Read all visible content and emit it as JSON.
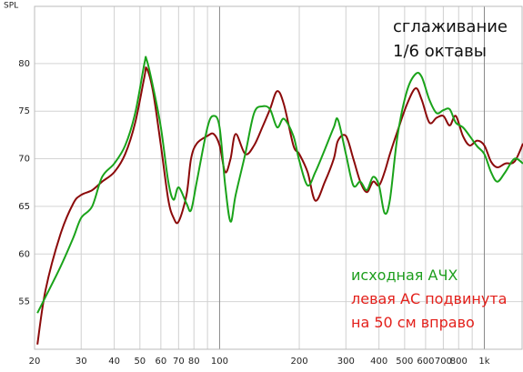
{
  "chart_data": {
    "type": "line",
    "y_label": "SPL",
    "annotation": "сглаживание 1/6 октавы",
    "x": [
      20.5,
      22,
      25,
      28,
      30,
      33,
      36,
      40,
      44,
      48,
      52,
      53,
      56,
      60,
      64,
      67,
      70,
      75,
      78,
      82,
      90,
      95,
      100,
      105,
      110,
      115,
      125,
      135,
      145,
      155,
      165,
      175,
      190,
      200,
      215,
      230,
      250,
      270,
      280,
      300,
      320,
      340,
      360,
      380,
      400,
      420,
      440,
      470,
      510,
      550,
      580,
      620,
      660,
      700,
      740,
      780,
      830,
      880,
      940,
      1000,
      1060,
      1120,
      1200,
      1300,
      1400
    ],
    "series": [
      {
        "name": "исходная АЧХ",
        "color": "#1aa31a",
        "label_color": "#1e9e1e",
        "values": [
          53.8,
          55.5,
          58.6,
          61.7,
          63.8,
          65.0,
          68.1,
          69.5,
          71.4,
          74.8,
          80.0,
          80.4,
          77.6,
          73.3,
          67.6,
          65.7,
          67.0,
          65.3,
          64.6,
          67.6,
          73.3,
          74.5,
          73.3,
          67.2,
          63.4,
          66.2,
          70.5,
          74.8,
          75.5,
          75.2,
          73.3,
          74.2,
          72.4,
          69.8,
          67.2,
          68.6,
          71.0,
          73.3,
          74.1,
          70.5,
          67.2,
          67.6,
          66.7,
          68.1,
          67.2,
          64.3,
          65.7,
          72.4,
          77.1,
          78.9,
          78.6,
          76.2,
          74.8,
          75.1,
          75.2,
          73.8,
          73.3,
          72.4,
          71.3,
          70.5,
          68.6,
          67.6,
          68.6,
          70.0,
          69.5
        ]
      },
      {
        "name": "левая АС подвинута на 50 см вправо",
        "color": "#8b0a0a",
        "label_color": "#e3201b",
        "values": [
          50.5,
          56.2,
          62.0,
          65.3,
          66.2,
          66.7,
          67.6,
          68.6,
          70.5,
          73.8,
          78.6,
          79.5,
          77.1,
          71.4,
          65.7,
          63.8,
          63.4,
          66.2,
          70.0,
          71.6,
          72.4,
          72.6,
          71.4,
          68.6,
          70.0,
          72.6,
          70.5,
          71.4,
          73.3,
          75.2,
          77.1,
          75.7,
          71.4,
          70.5,
          68.6,
          65.6,
          67.6,
          70.0,
          71.9,
          72.4,
          70.0,
          67.6,
          66.5,
          67.6,
          67.2,
          68.6,
          70.5,
          72.9,
          75.7,
          77.4,
          76.2,
          73.8,
          74.3,
          74.5,
          73.5,
          74.5,
          72.4,
          71.4,
          71.9,
          71.4,
          69.7,
          69.1,
          69.5,
          69.7,
          71.6
        ]
      }
    ],
    "log_x": true,
    "xlim": [
      20,
      1400
    ],
    "ylim": [
      50,
      86
    ],
    "xticks": [
      20,
      30,
      40,
      50,
      60,
      70,
      80,
      100,
      200,
      300,
      400,
      500,
      600,
      700,
      800,
      {
        "value": 1000,
        "label": "1k"
      }
    ],
    "xminor": [
      90,
      900
    ],
    "yticks": [
      55,
      60,
      65,
      70,
      75,
      80
    ],
    "grid": true
  }
}
